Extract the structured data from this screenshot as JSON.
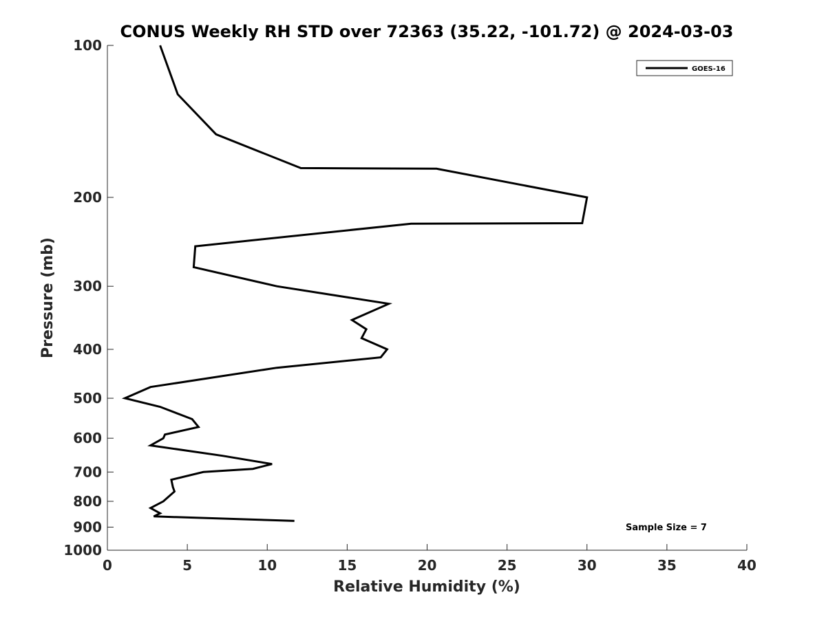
{
  "chart_data": {
    "type": "line",
    "title": "CONUS Weekly RH STD over 72363 (35.22, -101.72) @ 2024-03-03",
    "xlabel": "Relative Humidity (%)",
    "ylabel": "Pressure (mb)",
    "xlim": [
      0,
      40
    ],
    "ylim": [
      1000,
      100
    ],
    "y_scale": "log",
    "y_reversed": true,
    "xticks": [
      0,
      5,
      10,
      15,
      20,
      25,
      30,
      35,
      40
    ],
    "yticks": [
      100,
      200,
      300,
      400,
      500,
      600,
      700,
      800,
      900,
      1000
    ],
    "grid": false,
    "legend_position": "top-right",
    "series": [
      {
        "name": "GOES-16",
        "color": "#000000",
        "points": [
          {
            "x": 3.3,
            "y": 100
          },
          {
            "x": 4.4,
            "y": 125
          },
          {
            "x": 6.8,
            "y": 150
          },
          {
            "x": 12.1,
            "y": 175
          },
          {
            "x": 20.6,
            "y": 175.5
          },
          {
            "x": 30.0,
            "y": 200
          },
          {
            "x": 29.7,
            "y": 225
          },
          {
            "x": 19.0,
            "y": 225.5
          },
          {
            "x": 5.5,
            "y": 250
          },
          {
            "x": 5.4,
            "y": 275
          },
          {
            "x": 10.6,
            "y": 300
          },
          {
            "x": 17.6,
            "y": 325
          },
          {
            "x": 15.3,
            "y": 350
          },
          {
            "x": 16.2,
            "y": 365
          },
          {
            "x": 15.9,
            "y": 380
          },
          {
            "x": 17.5,
            "y": 400
          },
          {
            "x": 17.1,
            "y": 415
          },
          {
            "x": 10.6,
            "y": 435
          },
          {
            "x": 2.7,
            "y": 475
          },
          {
            "x": 1.1,
            "y": 500
          },
          {
            "x": 3.3,
            "y": 520
          },
          {
            "x": 5.3,
            "y": 550
          },
          {
            "x": 5.7,
            "y": 570
          },
          {
            "x": 3.6,
            "y": 590
          },
          {
            "x": 3.5,
            "y": 600
          },
          {
            "x": 2.7,
            "y": 620
          },
          {
            "x": 7.2,
            "y": 650
          },
          {
            "x": 10.3,
            "y": 675
          },
          {
            "x": 9.1,
            "y": 690
          },
          {
            "x": 6.0,
            "y": 700
          },
          {
            "x": 4.0,
            "y": 725
          },
          {
            "x": 4.1,
            "y": 750
          },
          {
            "x": 4.2,
            "y": 765
          },
          {
            "x": 3.5,
            "y": 800
          },
          {
            "x": 2.7,
            "y": 825
          },
          {
            "x": 3.3,
            "y": 845
          },
          {
            "x": 2.9,
            "y": 857
          },
          {
            "x": 11.7,
            "y": 875
          }
        ]
      }
    ],
    "annotations": [
      {
        "text": "Sample Size = 7",
        "position": "bottom-right"
      }
    ]
  }
}
